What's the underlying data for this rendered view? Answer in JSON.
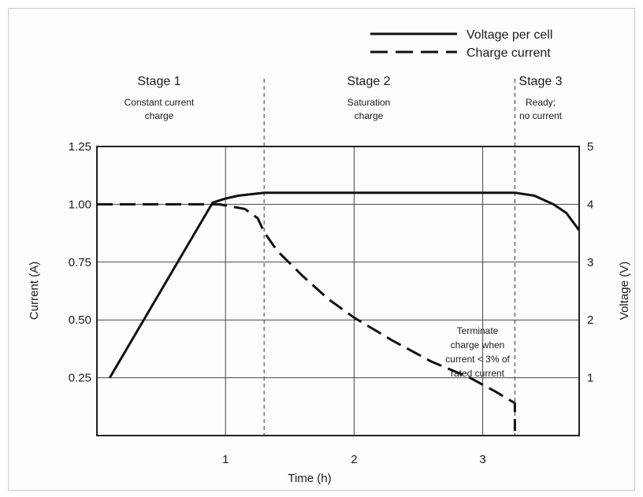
{
  "chart_data": {
    "type": "line",
    "title": "",
    "xlabel": "Time (h)",
    "ylabel_left": "Current (A)",
    "ylabel_right": "Voltage (V)",
    "xlim": [
      0,
      3.75
    ],
    "ylim_left": [
      0,
      1.25
    ],
    "ylim_right": [
      0,
      5
    ],
    "grid": true,
    "legend_position": "top-right",
    "x_ticks": [
      {
        "value": 1,
        "label": "1"
      },
      {
        "value": 2,
        "label": "2"
      },
      {
        "value": 3,
        "label": "3"
      }
    ],
    "y_ticks_left": [
      {
        "value": 0.25,
        "label": "0.25"
      },
      {
        "value": 0.5,
        "label": "0.50"
      },
      {
        "value": 0.75,
        "label": "0.75"
      },
      {
        "value": 1.0,
        "label": "1.00"
      },
      {
        "value": 1.25,
        "label": "1.25"
      }
    ],
    "y_ticks_right": [
      {
        "value": 1,
        "label": "1"
      },
      {
        "value": 2,
        "label": "2"
      },
      {
        "value": 3,
        "label": "3"
      },
      {
        "value": 4,
        "label": "4"
      },
      {
        "value": 5,
        "label": "5"
      }
    ],
    "series": [
      {
        "name": "Voltage per cell",
        "axis": "right",
        "style": "solid",
        "points": [
          [
            0.1,
            1.0
          ],
          [
            0.9,
            4.03
          ],
          [
            1.0,
            4.1
          ],
          [
            1.1,
            4.15
          ],
          [
            1.3,
            4.2
          ],
          [
            1.8,
            4.2
          ],
          [
            2.5,
            4.2
          ],
          [
            3.0,
            4.2
          ],
          [
            3.25,
            4.2
          ],
          [
            3.4,
            4.15
          ],
          [
            3.55,
            4.0
          ],
          [
            3.65,
            3.85
          ],
          [
            3.75,
            3.55
          ]
        ]
      },
      {
        "name": "Charge current",
        "axis": "left",
        "style": "dashed",
        "points": [
          [
            0.0,
            1.0
          ],
          [
            0.95,
            1.0
          ],
          [
            1.05,
            0.99
          ],
          [
            1.15,
            0.98
          ],
          [
            1.25,
            0.94
          ],
          [
            1.3,
            0.88
          ],
          [
            1.4,
            0.8
          ],
          [
            1.6,
            0.69
          ],
          [
            1.8,
            0.59
          ],
          [
            2.0,
            0.51
          ],
          [
            2.3,
            0.41
          ],
          [
            2.6,
            0.32
          ],
          [
            2.9,
            0.25
          ],
          [
            3.1,
            0.19
          ],
          [
            3.25,
            0.14
          ],
          [
            3.25,
            0.02
          ]
        ]
      }
    ],
    "stages": [
      {
        "title": "Stage 1",
        "desc": [
          "Constant current",
          "charge"
        ]
      },
      {
        "title": "Stage 2",
        "desc": [
          "Saturation",
          "charge"
        ]
      },
      {
        "title": "Stage 3",
        "desc": [
          "Ready;",
          "no current"
        ]
      }
    ],
    "stage_boundaries": [
      1.3,
      3.25
    ],
    "annotation": [
      "Terminate",
      "charge when",
      "current < 3% of",
      "rated current"
    ],
    "colors": {
      "line": "#111111",
      "grid": "#444444",
      "frame": "#222222"
    }
  }
}
